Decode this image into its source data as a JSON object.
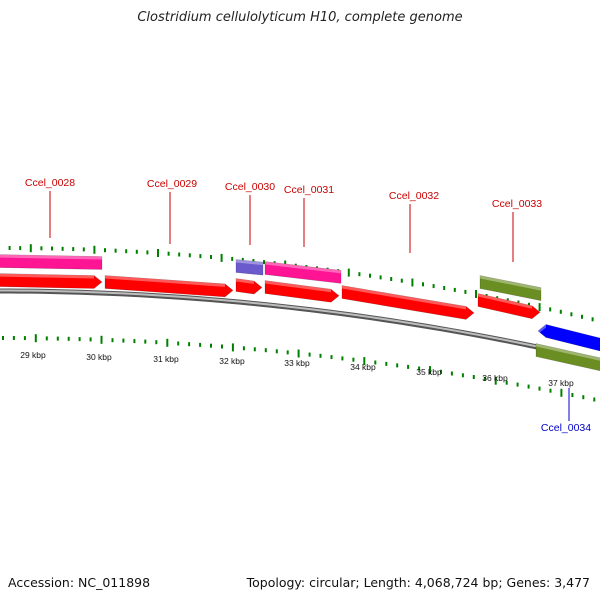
{
  "title": "Clostridium cellulolyticum H10, complete genome",
  "footer": {
    "accession": "Accession: NC_011898",
    "summary": "Topology: circular; Length: 4,068,724 bp; Genes: 3,477"
  },
  "colors": {
    "cds_red": "#ff0000",
    "gene_pink": "#ff1493",
    "gene_olive": "#6b8e23",
    "gene_slate": "#6a5acd",
    "cds_blue": "#0000ff",
    "tick_green": "#008000",
    "backbone_gray": "#8c8c8c",
    "label_red": "#cc0000",
    "label_blue": "#0000cc"
  },
  "scale": {
    "unit": "kbp",
    "ticks": [
      "29 kbp",
      "30 kbp",
      "31 kbp",
      "32 kbp",
      "33 kbp",
      "34 kbp",
      "35 kbp",
      "36 kbp",
      "37 kbp"
    ]
  },
  "gene_labels": [
    {
      "name": "Ccel_0028",
      "strand": "forward"
    },
    {
      "name": "Ccel_0029",
      "strand": "forward"
    },
    {
      "name": "Ccel_0030",
      "strand": "forward"
    },
    {
      "name": "Ccel_0031",
      "strand": "forward"
    },
    {
      "name": "Ccel_0032",
      "strand": "forward"
    },
    {
      "name": "Ccel_0033",
      "strand": "forward"
    },
    {
      "name": "Ccel_0034",
      "strand": "reverse"
    }
  ]
}
